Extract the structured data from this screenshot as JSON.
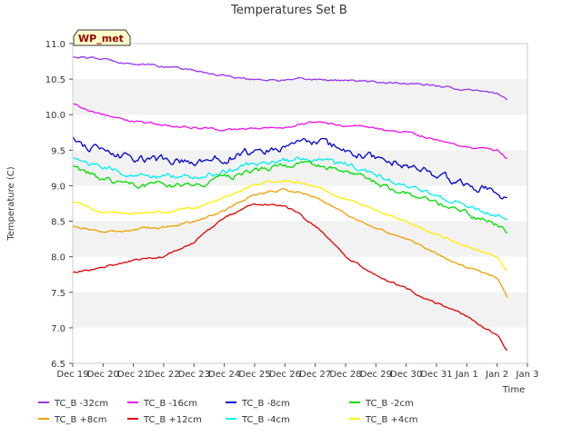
{
  "chart_data": {
    "type": "line",
    "title": "Temperatures Set B",
    "xlabel": "Time",
    "ylabel": "Temperature (C)",
    "ylim": [
      6.5,
      11.0
    ],
    "yticks": [
      6.5,
      7.0,
      7.5,
      8.0,
      8.5,
      9.0,
      9.5,
      10.0,
      10.5,
      11.0
    ],
    "xlim": [
      "2023-12-19",
      "2024-01-03"
    ],
    "xticks": [
      "Dec 19",
      "Dec 20",
      "Dec 21",
      "Dec 22",
      "Dec 23",
      "Dec 24",
      "Dec 25",
      "Dec 26",
      "Dec 27",
      "Dec 28",
      "Dec 29",
      "Dec 30",
      "Dec 31",
      "Jan 1",
      "Jan 2",
      "Jan 3"
    ],
    "x_dates": [
      "2023-12-19",
      "2023-12-20",
      "2023-12-21",
      "2023-12-22",
      "2023-12-23",
      "2023-12-24",
      "2023-12-25",
      "2023-12-26",
      "2023-12-27",
      "2023-12-28",
      "2023-12-29",
      "2023-12-30",
      "2023-12-31",
      "2024-01-01",
      "2024-01-02",
      "2024-01-02 08:00"
    ],
    "grid": "horizontal bands",
    "legend_position": "bottom",
    "annotation": "WP_met",
    "series": [
      {
        "name": "TC_B -32cm",
        "color": "#9933ee",
        "values": [
          10.82,
          10.78,
          10.72,
          10.68,
          10.62,
          10.55,
          10.5,
          10.48,
          10.5,
          10.48,
          10.46,
          10.44,
          10.4,
          10.35,
          10.3,
          10.22
        ]
      },
      {
        "name": "TC_B +8cm",
        "color": "#f0a000",
        "values": [
          8.43,
          8.35,
          8.38,
          8.42,
          8.5,
          8.65,
          8.88,
          8.95,
          8.85,
          8.6,
          8.4,
          8.25,
          8.05,
          7.85,
          7.7,
          7.43
        ]
      },
      {
        "name": "TC_B -16cm",
        "color": "#ee11ee",
        "values": [
          10.15,
          10.0,
          9.9,
          9.85,
          9.82,
          9.78,
          9.8,
          9.82,
          9.9,
          9.85,
          9.8,
          9.75,
          9.65,
          9.55,
          9.5,
          9.38
        ]
      },
      {
        "name": "TC_B +12cm",
        "color": "#dd0000",
        "values": [
          7.77,
          7.85,
          7.95,
          8.0,
          8.2,
          8.55,
          8.75,
          8.72,
          8.45,
          8.0,
          7.75,
          7.55,
          7.35,
          7.15,
          6.9,
          6.68
        ]
      },
      {
        "name": "TC_B -8cm",
        "color": "#0000cc",
        "values": [
          9.67,
          9.45,
          9.38,
          9.35,
          9.32,
          9.4,
          9.48,
          9.55,
          9.6,
          9.5,
          9.4,
          9.28,
          9.15,
          9.0,
          8.95,
          8.8
        ]
      },
      {
        "name": "TC_B -4cm",
        "color": "#00eeee",
        "values": [
          9.38,
          9.25,
          9.15,
          9.12,
          9.1,
          9.2,
          9.3,
          9.35,
          9.38,
          9.28,
          9.15,
          9.0,
          8.85,
          8.7,
          8.6,
          8.47
        ]
      },
      {
        "name": "TC_B -2cm",
        "color": "#00dd00",
        "values": [
          9.25,
          9.08,
          9.02,
          9.0,
          9.0,
          9.1,
          9.22,
          9.28,
          9.28,
          9.18,
          9.05,
          8.9,
          8.75,
          8.6,
          8.45,
          8.32
        ]
      },
      {
        "name": "TC_B +4cm",
        "color": "#ffee00",
        "values": [
          8.77,
          8.62,
          8.62,
          8.63,
          8.68,
          8.85,
          9.02,
          9.08,
          9.0,
          8.82,
          8.65,
          8.48,
          8.32,
          8.15,
          7.98,
          7.8
        ]
      }
    ]
  }
}
